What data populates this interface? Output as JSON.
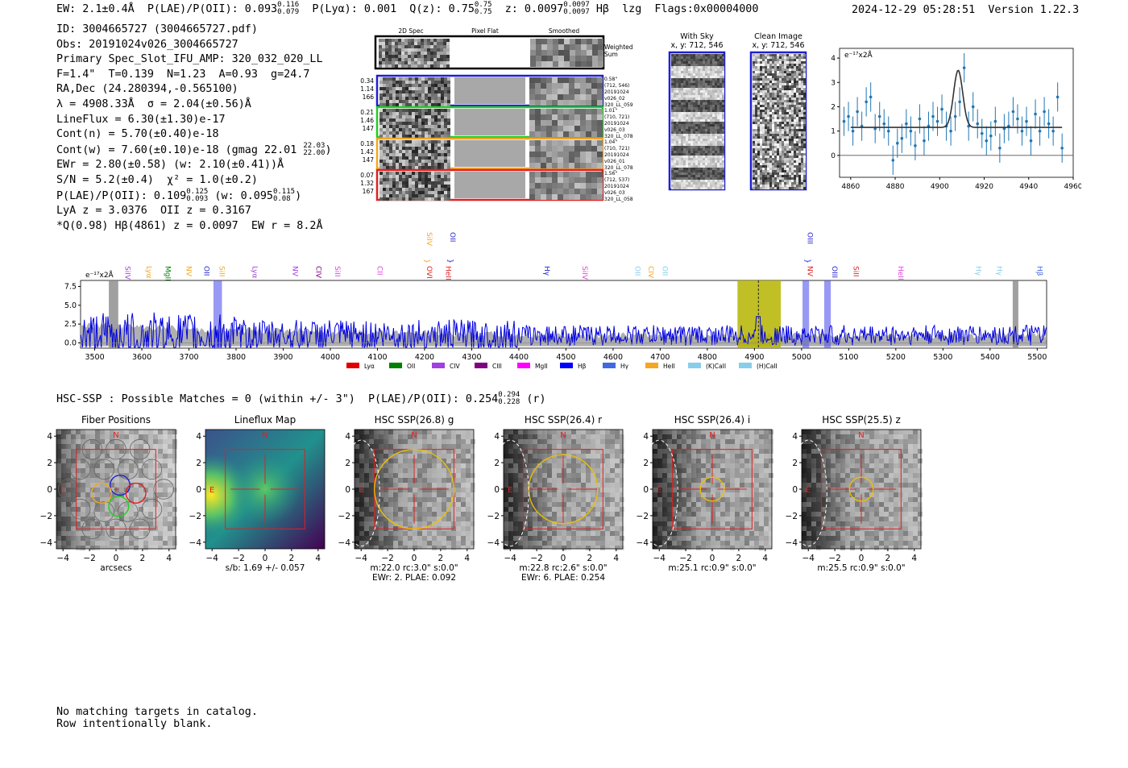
{
  "header": {
    "ew": "EW: 2.1±0.4Å",
    "plae": "P(LAE)/P(OII): 0.093",
    "plae_hi": "0.116",
    "plae_lo": "0.079",
    "plya": "P(Lyα): 0.001",
    "q": "Q(z): 0.75",
    "q_hi": "0.75",
    "q_lo": "0.75",
    "z": "z: 0.0097",
    "z_hi": "0.0097",
    "z_lo": "0.0097",
    "line": "Hβ",
    "lzg": "lzg",
    "flags": "Flags:0x00004000",
    "timestamp": "2024-12-29 05:28:51",
    "version": "Version 1.22.3"
  },
  "info": {
    "id": "ID: 3004665727 (3004665727.pdf)",
    "obs": "Obs: 20191024v026_3004665727",
    "primary": "Primary Spec_Slot_IFU_AMP: 320_032_020_LL",
    "params": "F=1.4\"  T=0.139  N=1.23  A=0.93  g=24.7",
    "radec": "RA,Dec (24.280394,-0.565100)",
    "lambda": "λ = 4908.33Å  σ = 2.04(±0.56)Å",
    "lineflux": "LineFlux = 6.30(±1.30)e-17",
    "contn": "Cont(n) = 5.70(±0.40)e-18",
    "contw": "Cont(w) = 7.60(±0.10)e-18 (gmag 22.01",
    "contw_hi": "22.03",
    "contw_lo": "22.00",
    "ewr": "EWr = 2.80(±0.58) (w: 2.10(±0.41))Å",
    "sn": "S/N = 5.2(±0.4)  χ² = 1.0(±0.2)",
    "plae": "P(LAE)/P(OII): 0.109",
    "plae_hi": "0.125",
    "plae_lo": "0.093",
    "plae_w": "(w: 0.095",
    "plae_w_hi": "0.115",
    "plae_w_lo": "0.08",
    "lya": "LyA z = 3.0376  OII z = 0.3167",
    "q": "*Q(0.98) Hβ(4861) z = 0.0097  EW r = 8.2Å"
  },
  "cutouts": {
    "col_titles": [
      "2D Spec",
      "Pixel Flat",
      "Smoothed"
    ],
    "weighted_label": [
      "Weighted",
      "Sum"
    ],
    "rows": [
      {
        "w": [
          "0.34",
          "1.14",
          "166"
        ],
        "info": [
          "0.58\"",
          "(712, 546)",
          "20191024",
          "v026_02",
          "320_LL_059"
        ],
        "color": "#1f1fd0"
      },
      {
        "w": [
          "0.21",
          "1.46",
          "147"
        ],
        "info": [
          "1.01\"",
          "(710, 721)",
          "20191024",
          "v026_03",
          "320_LL_078"
        ],
        "color": "#22cc22"
      },
      {
        "w": [
          "0.18",
          "1.42",
          "147"
        ],
        "info": [
          "1.04\"",
          "(710, 721)",
          "20191024",
          "v026_01",
          "320_LL_078"
        ],
        "color": "#f5a623"
      },
      {
        "w": [
          "0.07",
          "1.32",
          "167"
        ],
        "info": [
          "1.56\"",
          "(712, 537)",
          "20191024",
          "v026_03",
          "320_LL_058"
        ],
        "color": "#e02020"
      }
    ]
  },
  "sky": {
    "with_sky": [
      "With Sky",
      "x, y: 712, 546"
    ],
    "clean": [
      "Clean Image",
      "x, y: 712, 546"
    ]
  },
  "zoom_chart": {
    "type": "scatter",
    "title": "",
    "units": "e⁻¹⁷x2Å",
    "xlim": [
      4855,
      4960
    ],
    "ylim": [
      -0.9,
      4.4
    ],
    "xticks": [
      4860,
      4880,
      4900,
      4920,
      4940,
      4960
    ],
    "yticks": [
      0,
      1,
      2,
      3,
      4
    ],
    "x": [
      4857,
      4859,
      4861,
      4863,
      4865,
      4867,
      4869,
      4871,
      4873,
      4875,
      4877,
      4879,
      4881,
      4883,
      4885,
      4887,
      4889,
      4891,
      4893,
      4895,
      4897,
      4899,
      4901,
      4903,
      4905,
      4907,
      4909,
      4911,
      4913,
      4915,
      4917,
      4919,
      4921,
      4923,
      4925,
      4927,
      4929,
      4931,
      4933,
      4935,
      4937,
      4939,
      4941,
      4943,
      4945,
      4947,
      4949,
      4951,
      4953,
      4955
    ],
    "y": [
      1.4,
      1.6,
      1.0,
      1.8,
      1.2,
      2.2,
      2.4,
      1.1,
      1.6,
      1.3,
      1.0,
      -0.2,
      0.5,
      0.7,
      1.3,
      1.0,
      0.4,
      1.5,
      0.6,
      1.2,
      1.6,
      1.4,
      1.9,
      1.2,
      1.0,
      1.6,
      2.2,
      3.6,
      1.2,
      2.0,
      1.3,
      0.9,
      0.6,
      0.8,
      1.4,
      0.3,
      1.1,
      1.2,
      1.8,
      1.5,
      1.0,
      1.4,
      0.6,
      1.7,
      1.0,
      1.8,
      1.3,
      1.0,
      2.4,
      0.3
    ],
    "err": 0.6,
    "fit": {
      "continuum": 1.15,
      "peak_x": 4908.3,
      "amplitude": 2.35,
      "sigma": 2.04
    }
  },
  "spectrum": {
    "type": "line",
    "units": "e⁻¹⁷x2Å",
    "xlim": [
      3470,
      5520
    ],
    "ylim": [
      -0.7,
      8.3
    ],
    "xticks": [
      3500,
      3600,
      3700,
      3800,
      3900,
      4000,
      4100,
      4200,
      4300,
      4400,
      4500,
      4600,
      4700,
      4800,
      4900,
      5000,
      5100,
      5200,
      5300,
      5400,
      5500
    ],
    "yticks": [
      0.0,
      2.5,
      5.0,
      7.5
    ],
    "ytick_labels": [
      "0.0",
      "2.5",
      "5.0",
      "7.5"
    ],
    "highlight": {
      "x0": 4864,
      "x1": 4956,
      "peak": 4908.3
    },
    "blue_bands": [
      [
        3752,
        3770
      ],
      [
        5002,
        5016
      ],
      [
        5048,
        5062
      ]
    ],
    "gray_bands": [
      [
        3530,
        3550
      ],
      [
        5448,
        5460
      ]
    ],
    "line_labels": [
      {
        "x": 3560,
        "label": "SiIV",
        "color": "#a040e0",
        "row": 1
      },
      {
        "x": 3605,
        "label": "Lyα",
        "color": "#f5a623",
        "row": 1
      },
      {
        "x": 3645,
        "label": "MgII",
        "color": "#008000",
        "row": 1
      },
      {
        "x": 3690,
        "label": "NV",
        "color": "#f5a623",
        "row": 1
      },
      {
        "x": 3727,
        "label": "OII",
        "color": "#1f1fd0",
        "row": 1
      },
      {
        "x": 3760,
        "label": "SiII",
        "color": "#f5a623",
        "row": 1
      },
      {
        "x": 3830,
        "label": "Lyα",
        "color": "#a040e0",
        "row": 1
      },
      {
        "x": 3915,
        "label": "NV",
        "color": "#a040e0",
        "row": 1
      },
      {
        "x": 3965,
        "label": "CIV",
        "color": "#800080",
        "row": 1
      },
      {
        "x": 4005,
        "label": "SiII",
        "color": "#e040e0",
        "row": 1
      },
      {
        "x": 4095,
        "label": "CII",
        "color": "#e040e0",
        "row": 1
      },
      {
        "x": 4200,
        "label": "OVI",
        "color": "#e02020",
        "row": 1
      },
      {
        "x": 4240,
        "label": "HeII",
        "color": "#e02020",
        "row": 1
      },
      {
        "x": 4200,
        "label": "SiIV",
        "color": "#f5a623",
        "row": 0
      },
      {
        "x": 4250,
        "label": "OII",
        "color": "#1f1fd0",
        "row": 0
      },
      {
        "x": 4450,
        "label": "Hγ",
        "color": "#1f1fd0",
        "row": 1
      },
      {
        "x": 4530,
        "label": "SiIV",
        "color": "#e040e0",
        "row": 1
      },
      {
        "x": 4642,
        "label": "OII",
        "color": "#87ceeb",
        "row": 1
      },
      {
        "x": 4670,
        "label": "CIV",
        "color": "#f5a623",
        "row": 1
      },
      {
        "x": 4700,
        "label": "OII",
        "color": "#87ceeb",
        "row": 1
      },
      {
        "x": 5008,
        "label": "OIII",
        "color": "#1f1fd0",
        "row": 0
      },
      {
        "x": 5008,
        "label": "NV",
        "color": "#e02020",
        "row": 1
      },
      {
        "x": 5060,
        "label": "OIII",
        "color": "#1f1fd0",
        "row": 1
      },
      {
        "x": 5105,
        "label": "SiII",
        "color": "#e02020",
        "row": 1
      },
      {
        "x": 5200,
        "label": "HeII",
        "color": "#e040e0",
        "row": 1
      },
      {
        "x": 5365,
        "label": "Hγ",
        "color": "#87ceeb",
        "row": 1
      },
      {
        "x": 5410,
        "label": "Hγ",
        "color": "#87ceeb",
        "row": 1
      },
      {
        "x": 5495,
        "label": "Hβ",
        "color": "#4169e1",
        "row": 1
      }
    ],
    "legend": [
      {
        "label": "Lyα",
        "color": "#e00000"
      },
      {
        "label": "OII",
        "color": "#008000"
      },
      {
        "label": "CIV",
        "color": "#a040e0"
      },
      {
        "label": "CIII",
        "color": "#800080"
      },
      {
        "label": "MgII",
        "color": "#ff00ff"
      },
      {
        "label": "Hβ",
        "color": "#0000ff"
      },
      {
        "label": "Hγ",
        "color": "#4169e1"
      },
      {
        "label": "HeII",
        "color": "#f5a623"
      },
      {
        "label": "(K)CaII",
        "color": "#87ceeb"
      },
      {
        "label": "(H)CaII",
        "color": "#87ceeb"
      }
    ]
  },
  "hsc": {
    "summary": "HSC-SSP : Possible Matches = 0 (within +/- 3\")  P(LAE)/P(OII): 0.254",
    "summary_hi": "0.294",
    "summary_lo": "0.228",
    "summary_band": "(r)",
    "panels": [
      {
        "title": "Fiber Positions",
        "caption": [
          "arcsecs"
        ],
        "kind": "fiber"
      },
      {
        "title": "Lineflux Map",
        "caption": [
          "s/b: 1.69 +/- 0.057"
        ],
        "kind": "flux"
      },
      {
        "title": "HSC SSP(26.8) g",
        "caption": [
          "m:22.0 rc:3.0\"  s:0.0\"",
          "EWr: 2. PLAE: 0.092"
        ],
        "kind": "img",
        "r": 3.0
      },
      {
        "title": "HSC SSP(26.4) r",
        "caption": [
          "m:22.8 rc:2.6\"  s:0.0\"",
          "EWr: 6. PLAE: 0.254"
        ],
        "kind": "img",
        "r": 2.6
      },
      {
        "title": "HSC SSP(26.4) i",
        "caption": [
          "m:25.1 rc:0.9\"  s:0.0\""
        ],
        "kind": "img",
        "r": 0.9
      },
      {
        "title": "HSC SSP(25.5) z",
        "caption": [
          "m:25.5 rc:0.9\"  s:0.0\""
        ],
        "kind": "img",
        "r": 0.9
      }
    ],
    "ticks": [
      -4,
      -2,
      0,
      2,
      4
    ],
    "tick_labels": [
      "−4",
      "−2",
      "0",
      "2",
      "4"
    ],
    "north": "N",
    "east": "E"
  },
  "footer": [
    "No matching targets in catalog.",
    "Row intentionally blank."
  ]
}
